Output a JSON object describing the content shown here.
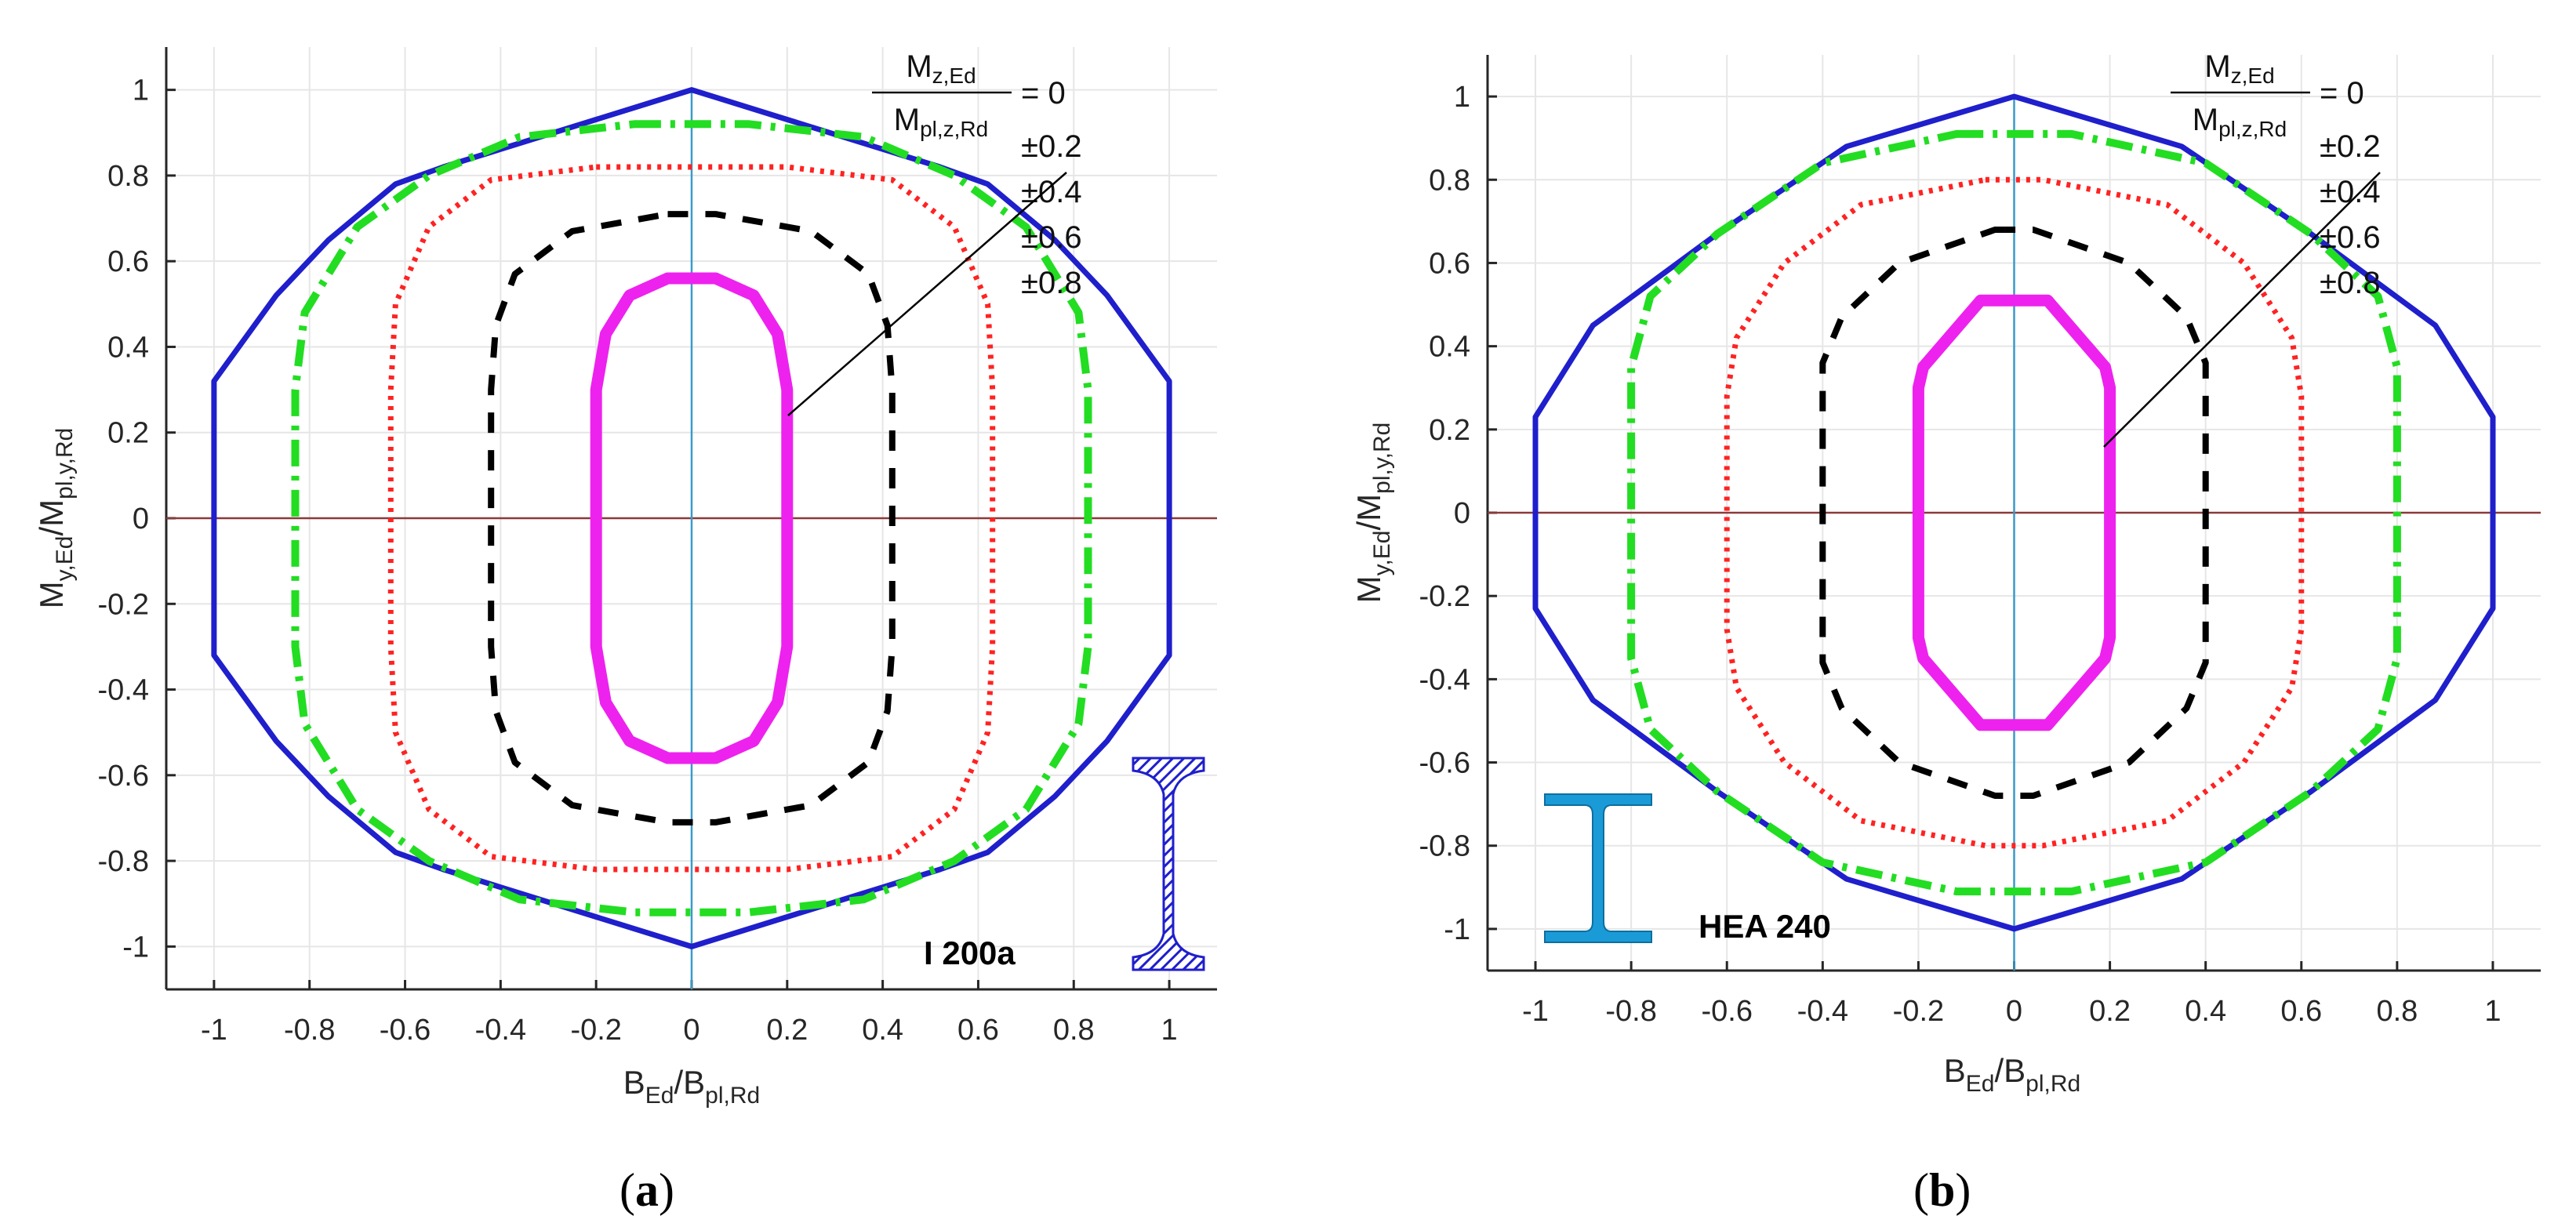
{
  "chart_data": [
    {
      "type": "line",
      "panel_label": "a",
      "section_name": "I 200a",
      "section_shape": "narrow-flange-i-beam",
      "xlabel": {
        "main": "B",
        "sub1": "Ed",
        "sep": "/",
        "main2": "B",
        "sub2": "pl,Rd"
      },
      "ylabel": {
        "main": "M",
        "sub1": "y,Ed",
        "sep": "/",
        "main2": "M",
        "sub2": "pl,y,Rd"
      },
      "xlim": [
        -1.1,
        1.1
      ],
      "ylim": [
        -1.1,
        1.1
      ],
      "xticks": [
        -1,
        -0.8,
        -0.6,
        -0.4,
        -0.2,
        0,
        0.2,
        0.4,
        0.6,
        0.8,
        1
      ],
      "xtick_labels": [
        "-1",
        "-0.8",
        "-0.6",
        "-0.4",
        "-0.2",
        "0",
        "0.2",
        "0.4",
        "0.6",
        "0.8",
        "1"
      ],
      "yticks": [
        1,
        0.8,
        0.6,
        0.4,
        0.2,
        0,
        -0.2,
        -0.4,
        -0.6,
        -0.8,
        -1
      ],
      "ytick_labels": [
        "1",
        "0.8",
        "0.6",
        "0.4",
        "0.2",
        "0",
        "-0.2",
        "-0.4",
        "-0.6",
        "-0.8",
        "-1"
      ],
      "grid": true,
      "legend": {
        "fraction_numerator": {
          "main": "M",
          "sub": "z,Ed"
        },
        "fraction_denominator": {
          "main": "M",
          "sub": "pl,z,Rd"
        },
        "first_value": "= 0",
        "values": [
          "±0.2",
          "±0.4",
          "±0.6",
          "±0.8"
        ],
        "placement": "top-right"
      },
      "series": [
        {
          "name": "Mz/Mpl,z = 0",
          "color": "#1f1fcc",
          "style": "solid",
          "points": [
            [
              0,
              1
            ],
            [
              0.52,
              0.82
            ],
            [
              0.62,
              0.78
            ],
            [
              0.76,
              0.65
            ],
            [
              0.87,
              0.52
            ],
            [
              1,
              0.32
            ],
            [
              1,
              -0.32
            ],
            [
              0.87,
              -0.52
            ],
            [
              0.76,
              -0.65
            ],
            [
              0.62,
              -0.78
            ],
            [
              0.52,
              -0.82
            ],
            [
              0,
              -1
            ],
            [
              -0.52,
              -0.82
            ],
            [
              -0.62,
              -0.78
            ],
            [
              -0.76,
              -0.65
            ],
            [
              -0.87,
              -0.52
            ],
            [
              -1,
              -0.32
            ],
            [
              -1,
              0.32
            ],
            [
              -0.87,
              0.52
            ],
            [
              -0.76,
              0.65
            ],
            [
              -0.62,
              0.78
            ],
            [
              -0.52,
              0.82
            ]
          ]
        },
        {
          "name": "Mz/Mpl,z = ±0.2",
          "color": "#22dd22",
          "style": "dashdot",
          "points": [
            [
              -0.12,
              0.92
            ],
            [
              0.12,
              0.92
            ],
            [
              0.36,
              0.89
            ],
            [
              0.55,
              0.8
            ],
            [
              0.7,
              0.68
            ],
            [
              0.81,
              0.48
            ],
            [
              0.83,
              0.3
            ],
            [
              0.83,
              -0.3
            ],
            [
              0.81,
              -0.48
            ],
            [
              0.7,
              -0.68
            ],
            [
              0.55,
              -0.8
            ],
            [
              0.36,
              -0.89
            ],
            [
              0.12,
              -0.92
            ],
            [
              -0.12,
              -0.92
            ],
            [
              -0.36,
              -0.89
            ],
            [
              -0.55,
              -0.8
            ],
            [
              -0.7,
              -0.68
            ],
            [
              -0.81,
              -0.48
            ],
            [
              -0.83,
              -0.3
            ],
            [
              -0.83,
              0.3
            ],
            [
              -0.81,
              0.48
            ],
            [
              -0.7,
              0.68
            ],
            [
              -0.55,
              0.8
            ],
            [
              -0.36,
              0.89
            ]
          ]
        },
        {
          "name": "Mz/Mpl,z = ±0.4",
          "color": "#ff2222",
          "style": "dotted",
          "points": [
            [
              -0.2,
              0.82
            ],
            [
              0.2,
              0.82
            ],
            [
              0.42,
              0.79
            ],
            [
              0.55,
              0.68
            ],
            [
              0.62,
              0.5
            ],
            [
              0.63,
              0.3
            ],
            [
              0.63,
              -0.3
            ],
            [
              0.62,
              -0.5
            ],
            [
              0.55,
              -0.68
            ],
            [
              0.42,
              -0.79
            ],
            [
              0.2,
              -0.82
            ],
            [
              -0.2,
              -0.82
            ],
            [
              -0.42,
              -0.79
            ],
            [
              -0.55,
              -0.68
            ],
            [
              -0.62,
              -0.5
            ],
            [
              -0.63,
              -0.3
            ],
            [
              -0.63,
              0.3
            ],
            [
              -0.62,
              0.5
            ],
            [
              -0.55,
              0.68
            ],
            [
              -0.42,
              0.79
            ]
          ]
        },
        {
          "name": "Mz/Mpl,z = ±0.6",
          "color": "#000000",
          "style": "dashed",
          "points": [
            [
              -0.05,
              0.71
            ],
            [
              0.05,
              0.71
            ],
            [
              0.25,
              0.67
            ],
            [
              0.37,
              0.57
            ],
            [
              0.41,
              0.45
            ],
            [
              0.42,
              0.3
            ],
            [
              0.42,
              -0.3
            ],
            [
              0.41,
              -0.45
            ],
            [
              0.37,
              -0.57
            ],
            [
              0.25,
              -0.67
            ],
            [
              0.05,
              -0.71
            ],
            [
              -0.05,
              -0.71
            ],
            [
              -0.25,
              -0.67
            ],
            [
              -0.37,
              -0.57
            ],
            [
              -0.41,
              -0.45
            ],
            [
              -0.42,
              -0.3
            ],
            [
              -0.42,
              0.3
            ],
            [
              -0.41,
              0.45
            ],
            [
              -0.37,
              0.57
            ],
            [
              -0.25,
              0.67
            ]
          ]
        },
        {
          "name": "Mz/Mpl,z = ±0.8",
          "color": "#ee22ee",
          "style": "thick",
          "points": [
            [
              -0.05,
              0.56
            ],
            [
              0.05,
              0.56
            ],
            [
              0.13,
              0.52
            ],
            [
              0.18,
              0.43
            ],
            [
              0.2,
              0.3
            ],
            [
              0.2,
              -0.3
            ],
            [
              0.18,
              -0.43
            ],
            [
              0.13,
              -0.52
            ],
            [
              0.05,
              -0.56
            ],
            [
              -0.05,
              -0.56
            ],
            [
              -0.13,
              -0.52
            ],
            [
              -0.18,
              -0.43
            ],
            [
              -0.2,
              -0.3
            ],
            [
              -0.2,
              0.3
            ],
            [
              -0.18,
              0.43
            ],
            [
              -0.13,
              0.52
            ]
          ]
        }
      ]
    },
    {
      "type": "line",
      "panel_label": "b",
      "section_name": "HEA 240",
      "section_shape": "wide-flange-h-beam",
      "xlabel": {
        "main": "B",
        "sub1": "Ed",
        "sep": "/",
        "main2": "B",
        "sub2": "pl,Rd"
      },
      "ylabel": {
        "main": "M",
        "sub1": "y,Ed",
        "sep": "/",
        "main2": "M",
        "sub2": "pl,y,Rd"
      },
      "xlim": [
        -1.1,
        1.1
      ],
      "ylim": [
        -1.1,
        1.1
      ],
      "xticks": [
        -1,
        -0.8,
        -0.6,
        -0.4,
        -0.2,
        0,
        0.2,
        0.4,
        0.6,
        0.8,
        1
      ],
      "xtick_labels": [
        "-1",
        "-0.8",
        "-0.6",
        "-0.4",
        "-0.2",
        "0",
        "0.2",
        "0.4",
        "0.6",
        "0.8",
        "1"
      ],
      "yticks": [
        1,
        0.8,
        0.6,
        0.4,
        0.2,
        0,
        -0.2,
        -0.4,
        -0.6,
        -0.8,
        -1
      ],
      "ytick_labels": [
        "1",
        "0.8",
        "0.6",
        "0.4",
        "0.2",
        "0",
        "-0.2",
        "-0.4",
        "-0.6",
        "-0.8",
        "-1"
      ],
      "grid": true,
      "legend": {
        "fraction_numerator": {
          "main": "M",
          "sub": "z,Ed"
        },
        "fraction_denominator": {
          "main": "M",
          "sub": "pl,z,Rd"
        },
        "first_value": "= 0",
        "values": [
          "±0.2",
          "±0.4",
          "±0.6",
          "±0.8"
        ],
        "placement": "top-right"
      },
      "series": [
        {
          "name": "Mz/Mpl,z = 0",
          "color": "#1f1fcc",
          "style": "solid",
          "points": [
            [
              0,
              1
            ],
            [
              0.35,
              0.88
            ],
            [
              0.62,
              0.67
            ],
            [
              0.88,
              0.45
            ],
            [
              1,
              0.23
            ],
            [
              1,
              -0.23
            ],
            [
              0.88,
              -0.45
            ],
            [
              0.62,
              -0.67
            ],
            [
              0.35,
              -0.88
            ],
            [
              0,
              -1
            ],
            [
              -0.35,
              -0.88
            ],
            [
              -0.62,
              -0.67
            ],
            [
              -0.88,
              -0.45
            ],
            [
              -1,
              -0.23
            ],
            [
              -1,
              0.23
            ],
            [
              -0.88,
              0.45
            ],
            [
              -0.62,
              0.67
            ],
            [
              -0.35,
              0.88
            ]
          ]
        },
        {
          "name": "Mz/Mpl,z = ±0.2",
          "color": "#22dd22",
          "style": "dashdot",
          "points": [
            [
              -0.12,
              0.91
            ],
            [
              0.12,
              0.91
            ],
            [
              0.4,
              0.84
            ],
            [
              0.62,
              0.67
            ],
            [
              0.76,
              0.52
            ],
            [
              0.8,
              0.35
            ],
            [
              0.8,
              -0.35
            ],
            [
              0.76,
              -0.52
            ],
            [
              0.62,
              -0.67
            ],
            [
              0.4,
              -0.84
            ],
            [
              0.12,
              -0.91
            ],
            [
              -0.12,
              -0.91
            ],
            [
              -0.4,
              -0.84
            ],
            [
              -0.62,
              -0.67
            ],
            [
              -0.76,
              -0.52
            ],
            [
              -0.8,
              -0.35
            ],
            [
              -0.8,
              0.35
            ],
            [
              -0.76,
              0.52
            ],
            [
              -0.62,
              0.67
            ],
            [
              -0.4,
              0.84
            ]
          ]
        },
        {
          "name": "Mz/Mpl,z = ±0.4",
          "color": "#ff2222",
          "style": "dotted",
          "points": [
            [
              -0.06,
              0.8
            ],
            [
              0.06,
              0.8
            ],
            [
              0.32,
              0.74
            ],
            [
              0.48,
              0.6
            ],
            [
              0.58,
              0.42
            ],
            [
              0.6,
              0.28
            ],
            [
              0.6,
              -0.28
            ],
            [
              0.58,
              -0.42
            ],
            [
              0.48,
              -0.6
            ],
            [
              0.32,
              -0.74
            ],
            [
              0.06,
              -0.8
            ],
            [
              -0.06,
              -0.8
            ],
            [
              -0.32,
              -0.74
            ],
            [
              -0.48,
              -0.6
            ],
            [
              -0.58,
              -0.42
            ],
            [
              -0.6,
              -0.28
            ],
            [
              -0.6,
              0.28
            ],
            [
              -0.58,
              0.42
            ],
            [
              -0.48,
              0.6
            ],
            [
              -0.32,
              0.74
            ]
          ]
        },
        {
          "name": "Mz/Mpl,z = ±0.6",
          "color": "#000000",
          "style": "dashed",
          "points": [
            [
              -0.04,
              0.68
            ],
            [
              0.04,
              0.68
            ],
            [
              0.24,
              0.6
            ],
            [
              0.36,
              0.47
            ],
            [
              0.4,
              0.36
            ],
            [
              0.4,
              -0.36
            ],
            [
              0.36,
              -0.47
            ],
            [
              0.24,
              -0.6
            ],
            [
              0.04,
              -0.68
            ],
            [
              -0.04,
              -0.68
            ],
            [
              -0.24,
              -0.6
            ],
            [
              -0.36,
              -0.47
            ],
            [
              -0.4,
              -0.36
            ],
            [
              -0.4,
              0.36
            ],
            [
              -0.36,
              0.47
            ],
            [
              -0.24,
              0.6
            ]
          ]
        },
        {
          "name": "Mz/Mpl,z = ±0.8",
          "color": "#ee22ee",
          "style": "thick",
          "points": [
            [
              -0.07,
              0.51
            ],
            [
              0.07,
              0.51
            ],
            [
              0.19,
              0.35
            ],
            [
              0.2,
              0.3
            ],
            [
              0.2,
              -0.3
            ],
            [
              0.19,
              -0.35
            ],
            [
              0.07,
              -0.51
            ],
            [
              -0.07,
              -0.51
            ],
            [
              -0.19,
              -0.35
            ],
            [
              -0.2,
              -0.3
            ],
            [
              -0.2,
              0.3
            ],
            [
              -0.19,
              0.35
            ]
          ]
        }
      ]
    }
  ],
  "axis_zero_line_color": "#8b3a3a",
  "axis_vertical_line_color": "#3a9ac9",
  "section_hatch_color": "#1f1fcc",
  "section_fill_color": "#1a9bd7"
}
